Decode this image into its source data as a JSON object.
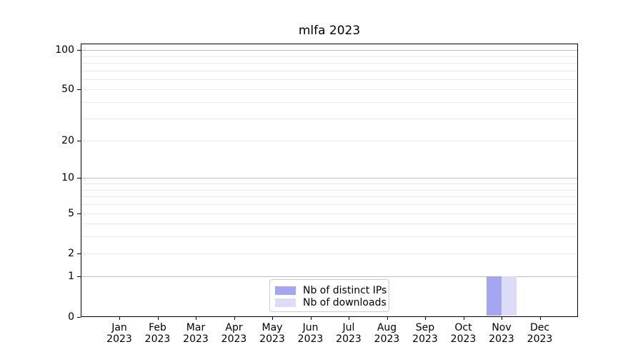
{
  "figure": {
    "title": "mlfa 2023"
  },
  "chart_data": {
    "type": "bar",
    "title": "mlfa 2023",
    "categories": [
      "Jan 2023",
      "Feb 2023",
      "Mar 2023",
      "Apr 2023",
      "May 2023",
      "Jun 2023",
      "Jul 2023",
      "Aug 2023",
      "Sep 2023",
      "Oct 2023",
      "Nov 2023",
      "Dec 2023"
    ],
    "x_tick_months": [
      "Jan",
      "Feb",
      "Mar",
      "Apr",
      "May",
      "Jun",
      "Jul",
      "Aug",
      "Sep",
      "Oct",
      "Nov",
      "Dec"
    ],
    "x_tick_year": "2023",
    "series": [
      {
        "name": "Nb of distinct IPs",
        "color": "#a5a5f1",
        "values": [
          0,
          0,
          0,
          0,
          0,
          0,
          0,
          0,
          0,
          0,
          1,
          0
        ]
      },
      {
        "name": "Nb of downloads",
        "color": "#dcdcf9",
        "values": [
          0,
          0,
          0,
          0,
          0,
          0,
          0,
          0,
          0,
          0,
          1,
          0
        ]
      }
    ],
    "xlabel": "",
    "ylabel": "",
    "y_axis": {
      "scale": "log1p",
      "tick_values": [
        0,
        1,
        2,
        5,
        10,
        20,
        50,
        100
      ],
      "major_gridlines": [
        1,
        10,
        100
      ],
      "minor_gridlines": [
        2,
        3,
        4,
        5,
        6,
        7,
        8,
        9,
        20,
        30,
        40,
        50,
        60,
        70,
        80,
        90
      ],
      "range": [
        0,
        110
      ]
    },
    "grid": "horizontal",
    "legend": {
      "position": "lower center",
      "labels": [
        "Nb of distinct IPs",
        "Nb of downloads"
      ]
    },
    "colors": {
      "bar_distinct_ips": "#a5a5f1",
      "bar_downloads": "#dcdcf9",
      "major_grid": "#bdbdbd",
      "minor_grid": "#e9e9e9",
      "axis": "#000000"
    }
  }
}
